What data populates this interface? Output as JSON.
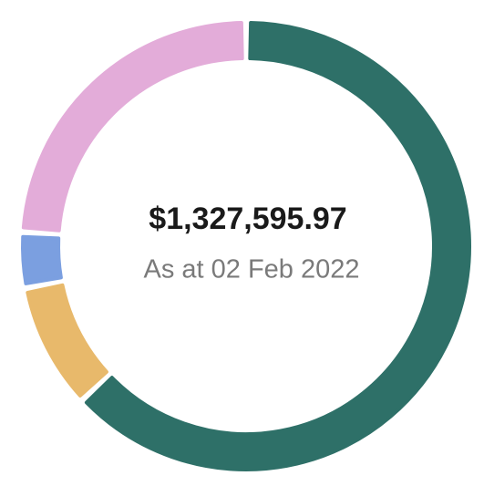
{
  "chart_data": {
    "type": "donut",
    "title": "$1,327,595.97",
    "subtitle": "As at 02 Feb 2022",
    "values": [
      63,
      9,
      4,
      24
    ],
    "colors": [
      "#2e7068",
      "#e8b96b",
      "#7b9fe0",
      "#e3acd9"
    ]
  }
}
